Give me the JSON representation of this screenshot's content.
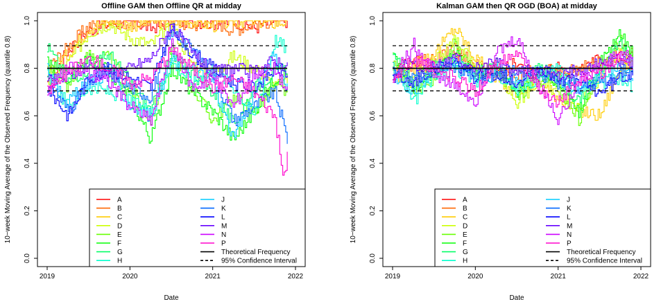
{
  "chart_data": [
    {
      "type": "line",
      "title": "Offline GAM then Offline QR at midday",
      "xlabel": "Date",
      "ylabel": "10−week Moving Average of the Observed Frequency (quantile 0.8)",
      "xlim": [
        2019.0,
        2022.0
      ],
      "ylim": [
        0.0,
        1.0
      ],
      "xticks": [
        "2019",
        "2020",
        "2021",
        "2022"
      ],
      "yticks": [
        "0.0",
        "0.2",
        "0.4",
        "0.6",
        "0.8",
        "1.0"
      ],
      "theoretical_frequency": 0.8,
      "confidence_interval": [
        0.705,
        0.895
      ],
      "legend_position": "bottom-right",
      "legend_labels": [
        "A",
        "B",
        "C",
        "D",
        "E",
        "F",
        "G",
        "H",
        "J",
        "K",
        "L",
        "M",
        "N",
        "P",
        "Theoretical Frequency",
        "95% Confidence Interval"
      ],
      "series": [
        {
          "name": "A",
          "color": "#FF0000",
          "x": [
            2019.0,
            2019.25,
            2019.5,
            2019.75,
            2020.0,
            2020.25,
            2020.5,
            2020.75,
            2021.0,
            2021.25,
            2021.5,
            2021.75,
            2021.9
          ],
          "values": [
            0.72,
            0.88,
            0.96,
            0.99,
            1.0,
            0.97,
            1.0,
            1.0,
            0.99,
            1.0,
            0.97,
            1.0,
            1.0
          ]
        },
        {
          "name": "B",
          "color": "#FF6600",
          "x": [
            2019.0,
            2019.25,
            2019.5,
            2019.75,
            2020.0,
            2020.25,
            2020.5,
            2020.75,
            2021.0,
            2021.25,
            2021.5,
            2021.75,
            2021.9
          ],
          "values": [
            0.8,
            0.89,
            0.98,
            1.0,
            0.99,
            1.0,
            1.0,
            0.98,
            1.0,
            0.96,
            0.99,
            1.0,
            1.0
          ]
        },
        {
          "name": "C",
          "color": "#FFCC00",
          "x": [
            2019.0,
            2019.25,
            2019.5,
            2019.75,
            2020.0,
            2020.25,
            2020.5,
            2020.75,
            2021.0,
            2021.25,
            2021.5,
            2021.75,
            2021.9
          ],
          "values": [
            0.78,
            0.86,
            0.97,
            1.0,
            0.98,
            1.0,
            0.99,
            1.0,
            0.98,
            1.0,
            1.0,
            0.99,
            1.0
          ]
        },
        {
          "name": "D",
          "color": "#CCFF00",
          "x": [
            2019.0,
            2019.25,
            2019.5,
            2019.75,
            2020.0,
            2020.25,
            2020.5,
            2020.75,
            2021.0,
            2021.25,
            2021.5,
            2021.75,
            2021.9
          ],
          "values": [
            0.74,
            0.82,
            0.95,
            0.99,
            0.93,
            0.9,
            0.98,
            0.82,
            0.78,
            0.85,
            0.8,
            0.72,
            0.75
          ]
        },
        {
          "name": "E",
          "color": "#66FF00",
          "x": [
            2019.0,
            2019.25,
            2019.5,
            2019.75,
            2020.0,
            2020.25,
            2020.5,
            2020.75,
            2021.0,
            2021.25,
            2021.5,
            2021.75,
            2021.9
          ],
          "values": [
            0.8,
            0.72,
            0.86,
            0.84,
            0.72,
            0.58,
            0.88,
            0.72,
            0.58,
            0.68,
            0.62,
            0.72,
            0.7
          ]
        },
        {
          "name": "F",
          "color": "#00FF00",
          "x": [
            2019.0,
            2019.25,
            2019.5,
            2019.75,
            2020.0,
            2020.25,
            2020.5,
            2020.75,
            2021.0,
            2021.25,
            2021.5,
            2021.75,
            2021.9
          ],
          "values": [
            0.82,
            0.76,
            0.84,
            0.78,
            0.68,
            0.5,
            0.8,
            0.7,
            0.62,
            0.5,
            0.62,
            0.76,
            0.78
          ]
        },
        {
          "name": "G",
          "color": "#00FF66",
          "x": [
            2019.0,
            2019.25,
            2019.5,
            2019.75,
            2020.0,
            2020.25,
            2020.5,
            2020.75,
            2021.0,
            2021.25,
            2021.5,
            2021.75,
            2021.9
          ],
          "values": [
            0.89,
            0.75,
            0.8,
            0.86,
            0.74,
            0.62,
            0.85,
            0.78,
            0.7,
            0.56,
            0.72,
            0.78,
            0.8
          ]
        },
        {
          "name": "H",
          "color": "#00FFCC",
          "x": [
            2019.0,
            2019.25,
            2019.5,
            2019.75,
            2020.0,
            2020.25,
            2020.5,
            2020.75,
            2021.0,
            2021.25,
            2021.5,
            2021.75,
            2021.9
          ],
          "values": [
            0.78,
            0.64,
            0.72,
            0.7,
            0.66,
            0.62,
            0.83,
            0.74,
            0.8,
            0.72,
            0.6,
            0.92,
            0.88
          ]
        },
        {
          "name": "J",
          "color": "#00CCFF",
          "x": [
            2019.0,
            2019.25,
            2019.5,
            2019.75,
            2020.0,
            2020.25,
            2020.5,
            2020.75,
            2021.0,
            2021.25,
            2021.5,
            2021.75,
            2021.9
          ],
          "values": [
            0.8,
            0.66,
            0.74,
            0.78,
            0.64,
            0.6,
            0.84,
            0.8,
            0.74,
            0.5,
            0.7,
            0.86,
            0.72
          ]
        },
        {
          "name": "K",
          "color": "#0066FF",
          "x": [
            2019.0,
            2019.25,
            2019.5,
            2019.75,
            2020.0,
            2020.25,
            2020.5,
            2020.75,
            2021.0,
            2021.25,
            2021.5,
            2021.75,
            2021.9
          ],
          "values": [
            0.76,
            0.62,
            0.74,
            0.8,
            0.72,
            0.68,
            0.96,
            0.88,
            0.78,
            0.58,
            0.64,
            0.7,
            0.5
          ]
        },
        {
          "name": "L",
          "color": "#0000FF",
          "x": [
            2019.0,
            2019.25,
            2019.5,
            2019.75,
            2020.0,
            2020.25,
            2020.5,
            2020.75,
            2021.0,
            2021.25,
            2021.5,
            2021.75,
            2021.9
          ],
          "values": [
            0.72,
            0.6,
            0.76,
            0.8,
            0.76,
            0.72,
            0.97,
            0.86,
            0.8,
            0.74,
            0.72,
            0.8,
            0.78
          ]
        },
        {
          "name": "M",
          "color": "#6600FF",
          "x": [
            2019.0,
            2019.25,
            2019.5,
            2019.75,
            2020.0,
            2020.25,
            2020.5,
            2020.75,
            2021.0,
            2021.25,
            2021.5,
            2021.75,
            2021.9
          ],
          "values": [
            0.74,
            0.76,
            0.82,
            0.76,
            0.8,
            0.84,
            0.98,
            0.86,
            0.78,
            0.8,
            0.78,
            0.84,
            0.8
          ]
        },
        {
          "name": "N",
          "color": "#CC00FF",
          "x": [
            2019.0,
            2019.25,
            2019.5,
            2019.75,
            2020.0,
            2020.25,
            2020.5,
            2020.75,
            2021.0,
            2021.25,
            2021.5,
            2021.75,
            2021.9
          ],
          "values": [
            0.7,
            0.8,
            0.78,
            0.74,
            0.64,
            0.58,
            0.9,
            0.72,
            0.76,
            0.64,
            0.78,
            0.8,
            0.7
          ]
        },
        {
          "name": "P",
          "color": "#FF00CC",
          "x": [
            2019.0,
            2019.25,
            2019.5,
            2019.75,
            2020.0,
            2020.25,
            2020.5,
            2020.75,
            2021.0,
            2021.25,
            2021.5,
            2021.75,
            2021.85,
            2021.9
          ],
          "values": [
            0.7,
            0.78,
            0.84,
            0.8,
            0.74,
            0.76,
            0.88,
            0.8,
            0.72,
            0.76,
            0.7,
            0.6,
            0.33,
            0.43
          ]
        }
      ]
    },
    {
      "type": "line",
      "title": "Kalman GAM then QR OGD (BOA) at midday",
      "xlabel": "Date",
      "ylabel": "10−week Moving Average of the Observed Frequency (quantile 0.8)",
      "xlim": [
        2019.0,
        2022.0
      ],
      "ylim": [
        0.0,
        1.0
      ],
      "xticks": [
        "2019",
        "2020",
        "2021",
        "2022"
      ],
      "yticks": [
        "0.0",
        "0.2",
        "0.4",
        "0.6",
        "0.8",
        "1.0"
      ],
      "theoretical_frequency": 0.8,
      "confidence_interval": [
        0.705,
        0.895
      ],
      "legend_position": "bottom-right",
      "legend_labels": [
        "A",
        "B",
        "C",
        "D",
        "E",
        "F",
        "G",
        "H",
        "J",
        "K",
        "L",
        "M",
        "N",
        "P",
        "Theoretical Frequency",
        "95% Confidence Interval"
      ],
      "series": [
        {
          "name": "A",
          "color": "#FF0000",
          "x": [
            2019.0,
            2019.25,
            2019.5,
            2019.75,
            2020.0,
            2020.25,
            2020.5,
            2020.75,
            2021.0,
            2021.25,
            2021.5,
            2021.75,
            2021.9
          ],
          "values": [
            0.8,
            0.84,
            0.78,
            0.86,
            0.8,
            0.78,
            0.82,
            0.76,
            0.8,
            0.78,
            0.84,
            0.86,
            0.84
          ]
        },
        {
          "name": "B",
          "color": "#FF6600",
          "x": [
            2019.0,
            2019.25,
            2019.5,
            2019.75,
            2020.0,
            2020.25,
            2020.5,
            2020.75,
            2021.0,
            2021.25,
            2021.5,
            2021.75,
            2021.9
          ],
          "values": [
            0.78,
            0.82,
            0.84,
            0.88,
            0.82,
            0.8,
            0.76,
            0.8,
            0.78,
            0.8,
            0.82,
            0.84,
            0.86
          ]
        },
        {
          "name": "C",
          "color": "#FFCC00",
          "x": [
            2019.0,
            2019.25,
            2019.5,
            2019.75,
            2020.0,
            2020.25,
            2020.5,
            2020.75,
            2021.0,
            2021.25,
            2021.5,
            2021.75,
            2021.9
          ],
          "values": [
            0.76,
            0.8,
            0.86,
            0.97,
            0.84,
            0.76,
            0.7,
            0.74,
            0.68,
            0.62,
            0.6,
            0.8,
            0.82
          ]
        },
        {
          "name": "D",
          "color": "#CCFF00",
          "x": [
            2019.0,
            2019.25,
            2019.5,
            2019.75,
            2020.0,
            2020.25,
            2020.5,
            2020.75,
            2021.0,
            2021.25,
            2021.5,
            2021.75,
            2021.9
          ],
          "values": [
            0.78,
            0.74,
            0.82,
            0.92,
            0.8,
            0.78,
            0.66,
            0.74,
            0.7,
            0.64,
            0.76,
            0.88,
            0.8
          ]
        },
        {
          "name": "E",
          "color": "#66FF00",
          "x": [
            2019.0,
            2019.25,
            2019.5,
            2019.75,
            2020.0,
            2020.25,
            2020.5,
            2020.75,
            2021.0,
            2021.25,
            2021.5,
            2021.75,
            2021.9
          ],
          "values": [
            0.82,
            0.7,
            0.76,
            0.9,
            0.78,
            0.8,
            0.68,
            0.76,
            0.72,
            0.58,
            0.8,
            0.92,
            0.84
          ]
        },
        {
          "name": "F",
          "color": "#00FF00",
          "x": [
            2019.0,
            2019.25,
            2019.5,
            2019.75,
            2020.0,
            2020.25,
            2020.5,
            2020.75,
            2021.0,
            2021.25,
            2021.5,
            2021.75,
            2021.9
          ],
          "values": [
            0.84,
            0.72,
            0.78,
            0.86,
            0.76,
            0.82,
            0.7,
            0.78,
            0.74,
            0.62,
            0.82,
            0.94,
            0.86
          ]
        },
        {
          "name": "G",
          "color": "#00FF66",
          "x": [
            2019.0,
            2019.25,
            2019.5,
            2019.75,
            2020.0,
            2020.25,
            2020.5,
            2020.75,
            2021.0,
            2021.25,
            2021.5,
            2021.75,
            2021.9
          ],
          "values": [
            0.88,
            0.74,
            0.8,
            0.84,
            0.78,
            0.8,
            0.72,
            0.8,
            0.76,
            0.66,
            0.78,
            0.9,
            0.8
          ]
        },
        {
          "name": "H",
          "color": "#00FFCC",
          "x": [
            2019.0,
            2019.25,
            2019.5,
            2019.75,
            2020.0,
            2020.25,
            2020.5,
            2020.75,
            2021.0,
            2021.25,
            2021.5,
            2021.75,
            2021.9
          ],
          "values": [
            0.8,
            0.66,
            0.76,
            0.8,
            0.74,
            0.78,
            0.7,
            0.76,
            0.8,
            0.72,
            0.74,
            0.76,
            0.72
          ]
        },
        {
          "name": "J",
          "color": "#00CCFF",
          "x": [
            2019.0,
            2019.25,
            2019.5,
            2019.75,
            2020.0,
            2020.25,
            2020.5,
            2020.75,
            2021.0,
            2021.25,
            2021.5,
            2021.75,
            2021.9
          ],
          "values": [
            0.78,
            0.7,
            0.8,
            0.82,
            0.76,
            0.8,
            0.74,
            0.78,
            0.76,
            0.7,
            0.76,
            0.8,
            0.76
          ]
        },
        {
          "name": "K",
          "color": "#0066FF",
          "x": [
            2019.0,
            2019.25,
            2019.5,
            2019.75,
            2020.0,
            2020.25,
            2020.5,
            2020.75,
            2021.0,
            2021.25,
            2021.5,
            2021.75,
            2021.9
          ],
          "values": [
            0.8,
            0.76,
            0.78,
            0.8,
            0.78,
            0.76,
            0.8,
            0.78,
            0.74,
            0.72,
            0.74,
            0.78,
            0.8
          ]
        },
        {
          "name": "L",
          "color": "#0000FF",
          "x": [
            2019.0,
            2019.25,
            2019.5,
            2019.75,
            2020.0,
            2020.25,
            2020.5,
            2020.75,
            2021.0,
            2021.25,
            2021.5,
            2021.75,
            2021.9
          ],
          "values": [
            0.76,
            0.74,
            0.8,
            0.82,
            0.76,
            0.78,
            0.74,
            0.8,
            0.76,
            0.74,
            0.7,
            0.76,
            0.78
          ]
        },
        {
          "name": "M",
          "color": "#6600FF",
          "x": [
            2019.0,
            2019.25,
            2019.5,
            2019.75,
            2020.0,
            2020.25,
            2020.5,
            2020.75,
            2021.0,
            2021.25,
            2021.5,
            2021.75,
            2021.9
          ],
          "values": [
            0.78,
            0.82,
            0.8,
            0.84,
            0.8,
            0.82,
            0.78,
            0.8,
            0.76,
            0.8,
            0.82,
            0.84,
            0.82
          ]
        },
        {
          "name": "N",
          "color": "#CC00FF",
          "x": [
            2019.0,
            2019.25,
            2019.5,
            2019.75,
            2020.0,
            2020.25,
            2020.5,
            2020.75,
            2021.0,
            2021.25,
            2021.5,
            2021.75,
            2021.9
          ],
          "values": [
            0.76,
            0.9,
            0.78,
            0.72,
            0.66,
            0.86,
            0.92,
            0.74,
            0.58,
            0.76,
            0.8,
            0.86,
            0.84
          ]
        },
        {
          "name": "P",
          "color": "#FF00CC",
          "x": [
            2019.0,
            2019.25,
            2019.5,
            2019.75,
            2020.0,
            2020.25,
            2020.5,
            2020.75,
            2021.0,
            2021.25,
            2021.5,
            2021.75,
            2021.9
          ],
          "values": [
            0.74,
            0.84,
            0.8,
            0.76,
            0.7,
            0.82,
            0.88,
            0.72,
            0.66,
            0.74,
            0.78,
            0.84,
            0.8
          ]
        }
      ]
    }
  ]
}
